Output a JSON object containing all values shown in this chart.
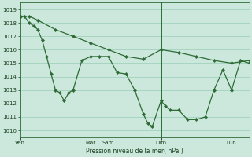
{
  "background_color": "#cce8dc",
  "grid_color": "#99ccb8",
  "line_color": "#2d6a35",
  "marker_color": "#2d6a35",
  "xlabel": "Pression niveau de la mer( hPa )",
  "ylim": [
    1009.5,
    1019.5
  ],
  "yticks": [
    1010,
    1011,
    1012,
    1013,
    1014,
    1015,
    1016,
    1017,
    1018,
    1019
  ],
  "xlim": [
    0,
    1.0
  ],
  "xtick_positions": [
    0.0,
    0.308,
    0.385,
    0.615,
    0.923
  ],
  "xtick_labels": [
    "Ven",
    "Mar",
    "Sam",
    "Dim",
    "Lun"
  ],
  "vlines": [
    0.308,
    0.385,
    0.615,
    0.923
  ],
  "line1_x": [
    0.0,
    0.038,
    0.077,
    0.154,
    0.231,
    0.308,
    0.385,
    0.462,
    0.538,
    0.615,
    0.692,
    0.769,
    0.846,
    0.923,
    1.0
  ],
  "line1_y": [
    1018.5,
    1018.5,
    1018.2,
    1017.5,
    1017.0,
    1016.5,
    1016.0,
    1015.5,
    1015.3,
    1016.0,
    1015.8,
    1015.5,
    1015.2,
    1015.0,
    1015.2
  ],
  "line2_x": [
    0.0,
    0.019,
    0.038,
    0.058,
    0.077,
    0.096,
    0.115,
    0.135,
    0.154,
    0.173,
    0.192,
    0.212,
    0.231,
    0.269,
    0.308,
    0.346,
    0.385,
    0.423,
    0.462,
    0.5,
    0.538,
    0.558,
    0.577,
    0.615,
    0.635,
    0.654,
    0.692,
    0.731,
    0.769,
    0.808,
    0.846,
    0.885,
    0.923,
    0.962,
    1.0
  ],
  "line2_y": [
    1018.5,
    1018.5,
    1018.0,
    1017.8,
    1017.5,
    1016.7,
    1015.5,
    1014.2,
    1013.0,
    1012.8,
    1012.2,
    1012.8,
    1013.0,
    1015.2,
    1015.5,
    1015.5,
    1015.5,
    1014.3,
    1014.2,
    1013.0,
    1011.2,
    1010.5,
    1010.3,
    1012.2,
    1011.8,
    1011.5,
    1011.5,
    1010.8,
    1010.8,
    1011.0,
    1013.0,
    1014.5,
    1013.0,
    1015.2,
    1015.0
  ]
}
